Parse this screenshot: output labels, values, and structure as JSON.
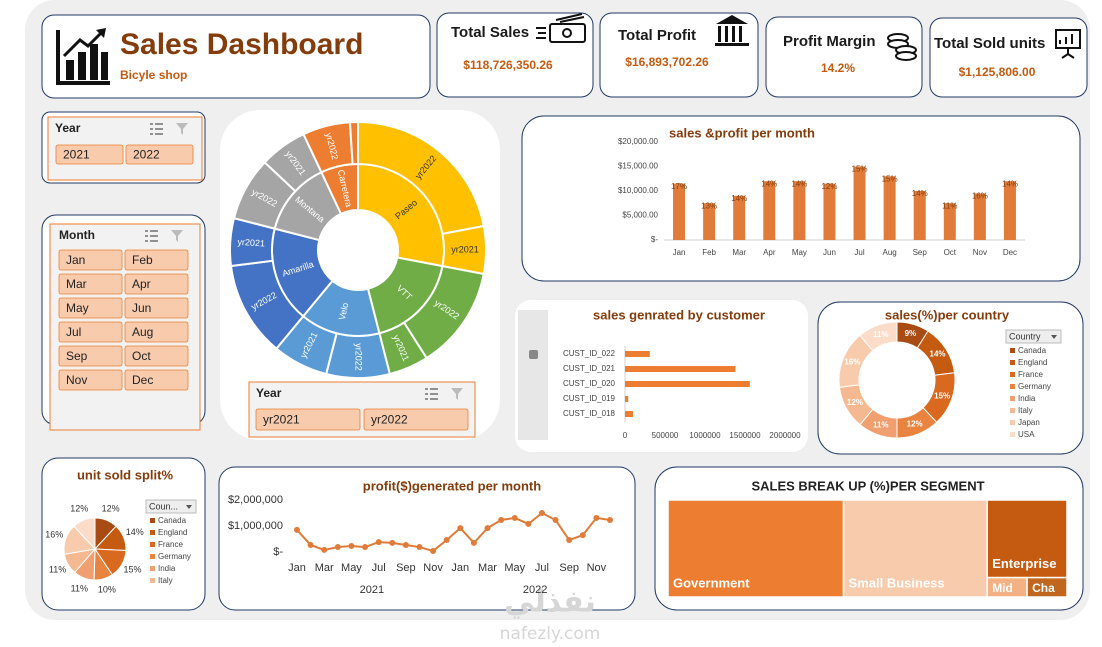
{
  "header": {
    "title": "Sales Dashboard",
    "subtitle": "Bicyle shop"
  },
  "kpis": [
    {
      "label": "Total Sales",
      "value": "$118,726,350.26"
    },
    {
      "label": "Total Profit",
      "value": "$16,893,702.26"
    },
    {
      "label": "Profit Margin",
      "value": "14.2%"
    },
    {
      "label": "Total Sold units",
      "value": "$1,125,806.00"
    }
  ],
  "slicers": [
    {
      "title": "Year",
      "items": [
        "2021",
        "2022"
      ]
    },
    {
      "title": "Month",
      "items": [
        "Jan",
        "Feb",
        "Mar",
        "Apr",
        "May",
        "Jun",
        "Jul",
        "Aug",
        "Sep",
        "Oct",
        "Nov",
        "Dec"
      ]
    },
    {
      "title": "Year",
      "items": [
        "yr2021",
        "yr2022"
      ]
    }
  ],
  "watermark": {
    "logo": "نفذلي",
    "url": "nafezly.com"
  },
  "chart_data": [
    {
      "type": "sunburst",
      "categories": [
        "yr2022",
        "yr2021"
      ],
      "series": [
        {
          "name": "Paseo",
          "color": "#ffc000",
          "values": [
            22,
            6
          ]
        },
        {
          "name": "VTT",
          "color": "#70ad47",
          "values": [
            13,
            5
          ]
        },
        {
          "name": "Velo",
          "color": "#5b9bd5",
          "values": [
            8,
            7
          ]
        },
        {
          "name": "Amarilla",
          "color": "#4472c4",
          "values": [
            12,
            6
          ]
        },
        {
          "name": "Montana",
          "color": "#a5a5a5",
          "values": [
            8,
            6
          ]
        },
        {
          "name": "Carretera",
          "color": "#ed7d31",
          "values": [
            6,
            1
          ]
        }
      ]
    },
    {
      "type": "bar",
      "title": "sales &profit per month",
      "categories": [
        "Jan",
        "Feb",
        "Mar",
        "Apr",
        "May",
        "Jun",
        "Jul",
        "Aug",
        "Sep",
        "Oct",
        "Nov",
        "Dec"
      ],
      "values": [
        11500,
        7500,
        9000,
        12000,
        12000,
        11500,
        15000,
        13000,
        10000,
        7500,
        9500,
        12000
      ],
      "point_labels": [
        "17%",
        "13%",
        "14%",
        "14%",
        "14%",
        "12%",
        "15%",
        "15%",
        "14%",
        "11%",
        "16%",
        "14%"
      ],
      "color": "#e07b39",
      "ylim": [
        0,
        20000
      ],
      "yticks": [
        {
          "value": 0,
          "label": "$-"
        },
        {
          "value": 5000,
          "label": "$5,000.00"
        },
        {
          "value": 10000,
          "label": "$10,000.00"
        },
        {
          "value": 15000,
          "label": "$15,000.00"
        },
        {
          "value": 20000,
          "label": "$20,000.00"
        }
      ]
    },
    {
      "type": "hbar",
      "title": "sales genrated by customer",
      "categories": [
        "CUST_ID_022",
        "CUST_ID_021",
        "CUST_ID_020",
        "CUST_ID_019",
        "CUST_ID_018"
      ],
      "values": [
        310000,
        1380000,
        1560000,
        40000,
        100000
      ],
      "color": "#ed7d31",
      "xlim": [
        0,
        2000000
      ],
      "xticks": [
        0,
        500000,
        1000000,
        1500000,
        2000000
      ]
    },
    {
      "type": "donut",
      "title": "sales(%)per country",
      "legend_title": "Country",
      "categories": [
        "Canada",
        "England",
        "France",
        "Germany",
        "India",
        "Italy",
        "Japan",
        "USA"
      ],
      "values": [
        9,
        14,
        15,
        12,
        11,
        12,
        16,
        11
      ],
      "value_labels": [
        "9%",
        "14%",
        "15%",
        "12%",
        "11%",
        "12%",
        "16%",
        "11%"
      ],
      "colors": [
        "#a94c14",
        "#c55a11",
        "#d9691f",
        "#e8843f",
        "#f0a070",
        "#f4b990",
        "#f8cbad",
        "#fbdcc8"
      ]
    },
    {
      "type": "pie",
      "title": "unit sold split%",
      "legend_title": "Coun...",
      "categories": [
        "Canada",
        "England",
        "France",
        "Germany",
        "India",
        "Italy",
        null,
        null
      ],
      "values": [
        12,
        14,
        15,
        10,
        11,
        11,
        16,
        12
      ],
      "value_labels": [
        "12%",
        "14%",
        "15%",
        "10%",
        "11%",
        "11%",
        "16%",
        "12%"
      ],
      "colors": [
        "#a94c14",
        "#c55a11",
        "#d9691f",
        "#e8843f",
        "#f0a070",
        "#f4b990",
        "#f8cbad",
        "#fbdcc8"
      ]
    },
    {
      "type": "line",
      "title": "profit($)generated per month",
      "categories": [
        "Jan",
        null,
        "Mar",
        null,
        "May",
        null,
        "Jul",
        null,
        "Sep",
        null,
        "Nov",
        null,
        "Jan",
        null,
        "Mar",
        null,
        "May",
        null,
        "Jul",
        null,
        "Sep",
        null,
        "Nov",
        null
      ],
      "groups": [
        "2021",
        "2022"
      ],
      "values": [
        850000,
        270000,
        80000,
        190000,
        230000,
        190000,
        380000,
        350000,
        270000,
        190000,
        40000,
        460000,
        920000,
        350000,
        920000,
        1230000,
        1310000,
        1080000,
        1500000,
        1230000,
        460000,
        650000,
        1310000,
        1230000
      ],
      "color": "#e07b39",
      "ylim": [
        0,
        2000000
      ],
      "yticks": [
        {
          "value": 0,
          "label": "$-"
        },
        {
          "value": 1000000,
          "label": "$1,000,000"
        },
        {
          "value": 2000000,
          "label": "$2,000,000"
        }
      ]
    },
    {
      "type": "treemap",
      "title": "SALES BREAK UP (%)PER SEGMENT",
      "categories": [
        "Government",
        "Small Business",
        "Enterprise",
        "Mid",
        "Cha"
      ],
      "values": [
        44,
        36,
        16,
        2,
        2
      ],
      "colors": [
        "#ed7d31",
        "#f8cbad",
        "#c55a11",
        "#f4b183",
        "#c0661e"
      ]
    }
  ]
}
